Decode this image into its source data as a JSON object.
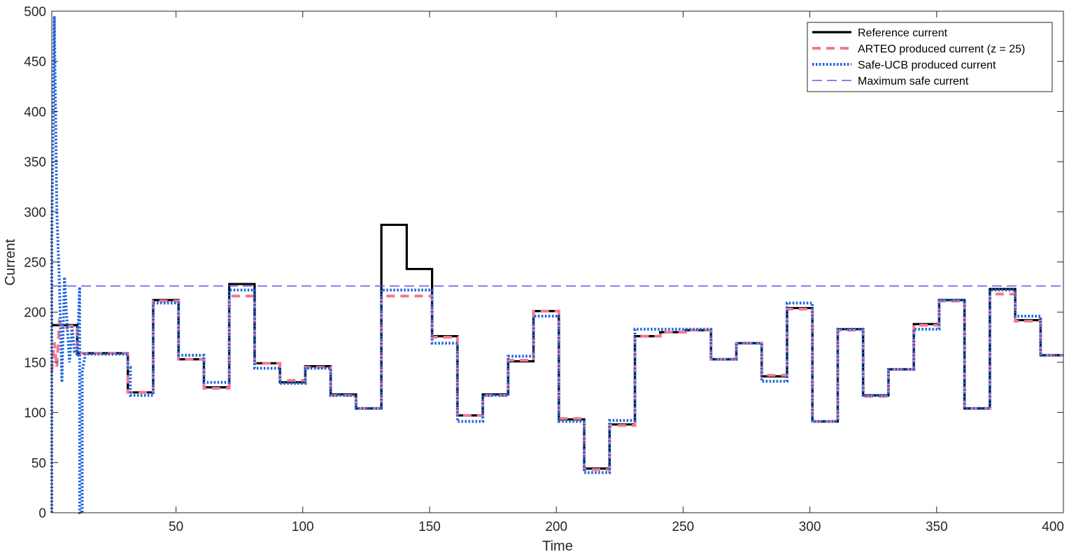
{
  "chart_data": {
    "type": "line",
    "title": "",
    "xlabel": "Time",
    "ylabel": "Current",
    "xlim": [
      1,
      400
    ],
    "ylim": [
      0,
      500
    ],
    "xticks": [
      50,
      100,
      150,
      200,
      250,
      300,
      350,
      400
    ],
    "xtick_labels": [
      "50",
      "100",
      "150",
      "200",
      "250",
      "300",
      "350",
      "400"
    ],
    "yticks": [
      0,
      50,
      100,
      150,
      200,
      250,
      300,
      350,
      400,
      450,
      500
    ],
    "ytick_labels": [
      "0",
      "50",
      "100",
      "150",
      "200",
      "250",
      "300",
      "350",
      "400",
      "450",
      "500"
    ],
    "grid": false,
    "legend_position": "top-right",
    "series": [
      {
        "name": "Reference current",
        "color": "#000000",
        "style": "solid",
        "x": [
          1,
          11,
          11,
          31,
          31,
          41,
          41,
          51,
          51,
          61,
          61,
          71,
          71,
          81,
          81,
          91,
          91,
          101,
          101,
          111,
          111,
          121,
          121,
          131,
          131,
          141,
          141,
          151,
          151,
          161,
          161,
          171,
          171,
          181,
          181,
          191,
          191,
          201,
          201,
          211,
          211,
          221,
          221,
          231,
          231,
          241,
          241,
          251,
          251,
          261,
          261,
          271,
          271,
          281,
          281,
          291,
          291,
          301,
          301,
          311,
          311,
          321,
          321,
          331,
          331,
          341,
          341,
          351,
          351,
          361,
          361,
          371,
          371,
          381,
          381,
          391,
          391,
          400
        ],
        "y": [
          187,
          187,
          159,
          159,
          120,
          120,
          212,
          212,
          153,
          153,
          125,
          125,
          228,
          228,
          149,
          149,
          130,
          130,
          146,
          146,
          118,
          118,
          104,
          104,
          287,
          287,
          243,
          243,
          176,
          176,
          97,
          97,
          118,
          118,
          151,
          151,
          201,
          201,
          93,
          93,
          44,
          44,
          88,
          88,
          176,
          176,
          180,
          180,
          182,
          182,
          153,
          153,
          169,
          169,
          136,
          136,
          204,
          204,
          91,
          91,
          183,
          183,
          117,
          117,
          143,
          143,
          188,
          188,
          212,
          212,
          104,
          104,
          223,
          223,
          192,
          192,
          157,
          157
        ]
      },
      {
        "name": "ARTEO produced current (z = 25)",
        "color": "#f07a8e",
        "style": "dashed",
        "x": [
          1,
          2,
          3,
          4,
          6,
          8,
          11,
          11,
          31,
          31,
          41,
          41,
          51,
          51,
          61,
          61,
          71,
          71,
          81,
          81,
          91,
          91,
          101,
          101,
          111,
          111,
          121,
          121,
          131,
          131,
          151,
          151,
          161,
          161,
          171,
          171,
          181,
          181,
          191,
          191,
          201,
          201,
          211,
          211,
          221,
          221,
          231,
          231,
          241,
          241,
          251,
          251,
          261,
          261,
          271,
          271,
          281,
          281,
          291,
          291,
          301,
          301,
          311,
          311,
          321,
          321,
          331,
          331,
          341,
          341,
          351,
          351,
          361,
          361,
          371,
          371,
          381,
          381,
          391,
          391,
          400
        ],
        "y": [
          140,
          170,
          145,
          190,
          182,
          186,
          186,
          159,
          159,
          120,
          120,
          211,
          211,
          153,
          153,
          124,
          124,
          216,
          216,
          149,
          149,
          132,
          132,
          145,
          145,
          117,
          117,
          104,
          104,
          216,
          216,
          175,
          175,
          97,
          97,
          117,
          117,
          152,
          152,
          201,
          201,
          94,
          94,
          43,
          43,
          87,
          87,
          176,
          176,
          180,
          180,
          182,
          182,
          153,
          153,
          169,
          169,
          137,
          137,
          203,
          203,
          91,
          91,
          182,
          182,
          116,
          116,
          143,
          143,
          187,
          187,
          211,
          211,
          104,
          104,
          218,
          218,
          191,
          191,
          157,
          157
        ]
      },
      {
        "name": "Safe-UCB produced current",
        "color": "#1a63e0",
        "style": "dotted",
        "x": [
          1,
          1,
          2,
          3,
          4,
          5,
          6,
          7,
          8,
          9,
          10,
          11,
          12,
          12,
          13,
          13,
          14,
          14,
          31,
          31,
          32,
          32,
          41,
          41,
          51,
          51,
          61,
          61,
          71,
          71,
          81,
          81,
          91,
          91,
          101,
          101,
          111,
          111,
          121,
          121,
          131,
          131,
          151,
          151,
          161,
          161,
          171,
          171,
          181,
          181,
          191,
          191,
          201,
          201,
          211,
          211,
          221,
          221,
          231,
          231,
          261,
          261,
          271,
          271,
          281,
          281,
          291,
          291,
          301,
          301,
          311,
          311,
          321,
          321,
          331,
          331,
          341,
          341,
          351,
          351,
          361,
          361,
          371,
          371,
          381,
          381,
          391,
          391,
          400
        ],
        "y": [
          0,
          272,
          495,
          300,
          230,
          130,
          235,
          190,
          150,
          185,
          160,
          158,
          225,
          0,
          0,
          140,
          155,
          158,
          158,
          145,
          145,
          117,
          117,
          209,
          209,
          157,
          157,
          130,
          130,
          222,
          222,
          144,
          144,
          129,
          129,
          144,
          144,
          117,
          117,
          104,
          104,
          222,
          222,
          169,
          169,
          91,
          91,
          117,
          117,
          156,
          156,
          196,
          196,
          91,
          91,
          40,
          40,
          92,
          92,
          183,
          183,
          153,
          153,
          169,
          169,
          131,
          131,
          209,
          209,
          91,
          91,
          183,
          183,
          117,
          117,
          143,
          143,
          183,
          183,
          212,
          212,
          104,
          104,
          222,
          222,
          196,
          196,
          157,
          157
        ]
      },
      {
        "name": "Maximum safe current",
        "color": "#5a5ae6",
        "style": "dashed",
        "x": [
          1,
          400
        ],
        "y": [
          226,
          226
        ]
      }
    ]
  }
}
